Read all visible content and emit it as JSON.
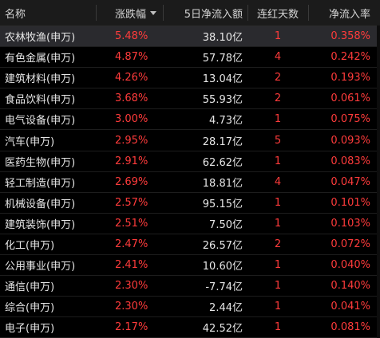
{
  "table": {
    "headers": {
      "name": "名称",
      "pct": "涨跌幅",
      "flow": "5日净流入额",
      "days": "连红天数",
      "rate": "净流入率"
    },
    "sort_icon": "sort-desc-icon",
    "colors": {
      "up": "#ff3b3b",
      "down": "#2fd24a",
      "header_bg": "#1b1b1b",
      "selected_bg": "#2a2a2e",
      "background": "#000000"
    },
    "rows": [
      {
        "name": "农林牧渔(申万)",
        "pct": "5.48%",
        "flow": "38.10亿",
        "days": "1",
        "rate": "0.358%"
      },
      {
        "name": "有色金属(申万)",
        "pct": "4.87%",
        "flow": "57.78亿",
        "days": "4",
        "rate": "0.242%"
      },
      {
        "name": "建筑材料(申万)",
        "pct": "4.26%",
        "flow": "13.04亿",
        "days": "2",
        "rate": "0.193%"
      },
      {
        "name": "食品饮料(申万)",
        "pct": "3.68%",
        "flow": "55.93亿",
        "days": "2",
        "rate": "0.061%"
      },
      {
        "name": "电气设备(申万)",
        "pct": "3.00%",
        "flow": "4.73亿",
        "days": "1",
        "rate": "0.075%"
      },
      {
        "name": "汽车(申万)",
        "pct": "2.95%",
        "flow": "28.17亿",
        "days": "5",
        "rate": "0.093%"
      },
      {
        "name": "医药生物(申万)",
        "pct": "2.91%",
        "flow": "62.62亿",
        "days": "1",
        "rate": "0.083%"
      },
      {
        "name": "轻工制造(申万)",
        "pct": "2.69%",
        "flow": "18.81亿",
        "days": "4",
        "rate": "0.047%"
      },
      {
        "name": "机械设备(申万)",
        "pct": "2.57%",
        "flow": "95.15亿",
        "days": "1",
        "rate": "0.101%"
      },
      {
        "name": "建筑装饰(申万)",
        "pct": "2.51%",
        "flow": "7.50亿",
        "days": "1",
        "rate": "0.103%"
      },
      {
        "name": "化工(申万)",
        "pct": "2.47%",
        "flow": "26.57亿",
        "days": "2",
        "rate": "0.072%"
      },
      {
        "name": "公用事业(申万)",
        "pct": "2.41%",
        "flow": "10.60亿",
        "days": "1",
        "rate": "0.040%"
      },
      {
        "name": "通信(申万)",
        "pct": "2.30%",
        "flow": "-7.74亿",
        "days": "1",
        "rate": "0.140%"
      },
      {
        "name": "综合(申万)",
        "pct": "2.30%",
        "flow": "2.44亿",
        "days": "1",
        "rate": "0.041%"
      },
      {
        "name": "电子(申万)",
        "pct": "2.17%",
        "flow": "42.52亿",
        "days": "1",
        "rate": "0.081%"
      }
    ]
  }
}
